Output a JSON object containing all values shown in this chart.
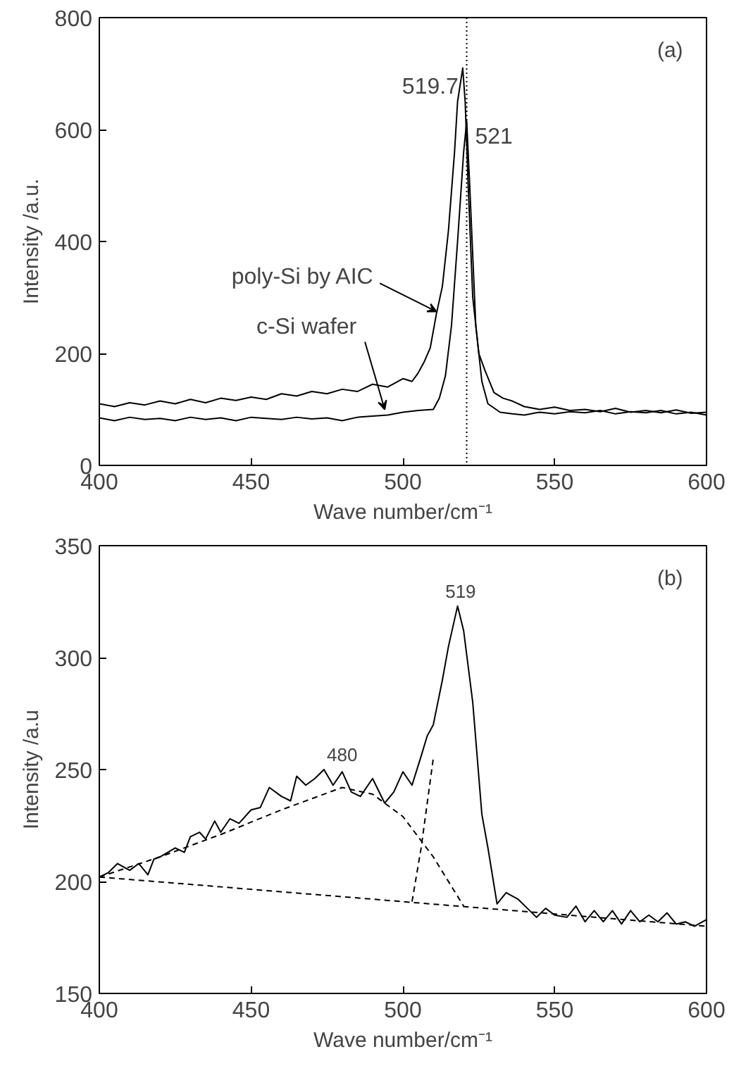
{
  "chart_data": [
    {
      "type": "line",
      "xlabel": "Wave number/cm⁻¹",
      "ylabel": "Intensity /a.u.",
      "xlim": [
        400,
        600
      ],
      "ylim": [
        0,
        800
      ],
      "xticks": [
        400,
        450,
        500,
        550,
        600
      ],
      "yticks": [
        0,
        200,
        400,
        600,
        800
      ],
      "series": [
        {
          "color": "#000000",
          "x": [
            400,
            405,
            410,
            415,
            420,
            425,
            430,
            435,
            440,
            445,
            450,
            455,
            460,
            465,
            470,
            475,
            480,
            485,
            490,
            495,
            500,
            503,
            505,
            507,
            509,
            511,
            513,
            515,
            517,
            518,
            519.7,
            520.5,
            521.5,
            523,
            525,
            527,
            530,
            533,
            536,
            540,
            545,
            550,
            555,
            560,
            565,
            570,
            575,
            580,
            585,
            590,
            595,
            600
          ],
          "values": [
            110,
            105,
            112,
            108,
            115,
            110,
            118,
            112,
            120,
            116,
            122,
            118,
            128,
            124,
            132,
            128,
            136,
            132,
            145,
            140,
            155,
            150,
            165,
            185,
            210,
            270,
            320,
            420,
            560,
            650,
            710,
            650,
            500,
            300,
            200,
            170,
            130,
            120,
            115,
            105,
            100,
            104,
            98,
            100,
            96,
            102,
            95,
            98,
            94,
            99,
            93,
            95
          ]
        },
        {
          "color": "#000000",
          "x": [
            400,
            405,
            410,
            415,
            420,
            425,
            430,
            435,
            440,
            445,
            450,
            455,
            460,
            465,
            470,
            475,
            480,
            485,
            490,
            495,
            500,
            505,
            510,
            512,
            514,
            516,
            518,
            520,
            521,
            522,
            524,
            526,
            528,
            532,
            536,
            540,
            545,
            550,
            555,
            560,
            565,
            570,
            575,
            580,
            585,
            590,
            595,
            600
          ],
          "values": [
            85,
            80,
            86,
            82,
            84,
            80,
            86,
            82,
            85,
            80,
            86,
            84,
            82,
            86,
            83,
            85,
            80,
            86,
            88,
            90,
            95,
            98,
            100,
            120,
            160,
            250,
            400,
            560,
            615,
            500,
            250,
            150,
            110,
            95,
            92,
            90,
            95,
            92,
            96,
            94,
            98,
            92,
            96,
            94,
            98,
            92,
            95,
            90
          ]
        }
      ],
      "ref_lines": [
        {
          "axis": "x",
          "value": 521,
          "color": "#000000",
          "line_style": "dotted"
        }
      ],
      "annotations": [
        {
          "text": "519.7",
          "x": 519.7,
          "y": 710
        },
        {
          "text": "521",
          "x": 521,
          "y": 615
        },
        {
          "text": "poly-Si by AIC",
          "x": 511,
          "y": 275
        },
        {
          "text": "c-Si wafer",
          "x": 494,
          "y": 100
        },
        "(a)"
      ]
    },
    {
      "type": "line",
      "xlabel": "Wave number/cm⁻¹",
      "ylabel": "Intensity /a.u",
      "xlim": [
        400,
        600
      ],
      "ylim": [
        150,
        350
      ],
      "xticks": [
        400,
        450,
        500,
        550,
        600
      ],
      "yticks": [
        150,
        200,
        250,
        300,
        350
      ],
      "series": [
        {
          "color": "#000000",
          "line_style": "solid",
          "x": [
            400,
            403,
            406,
            410,
            413,
            416,
            418,
            420,
            425,
            428,
            430,
            433,
            435,
            438,
            440,
            443,
            446,
            450,
            453,
            456,
            460,
            463,
            465,
            468,
            471,
            474,
            477,
            480,
            483,
            486,
            490,
            494,
            497,
            500,
            503,
            506,
            508,
            510,
            513,
            515,
            518,
            520,
            523,
            526,
            528,
            531,
            534,
            538,
            541,
            544,
            547,
            550,
            554,
            557,
            560,
            563,
            566,
            569,
            572,
            575,
            578,
            581,
            584,
            587,
            590,
            593,
            596,
            600
          ],
          "values": [
            202,
            204,
            208,
            205,
            208,
            203,
            210,
            211,
            215,
            213,
            220,
            222,
            219,
            227,
            222,
            228,
            226,
            232,
            233,
            242,
            238,
            236,
            247,
            243,
            246,
            250,
            243,
            249,
            240,
            238,
            246,
            235,
            240,
            249,
            243,
            256,
            265,
            270,
            290,
            305,
            323,
            312,
            280,
            230,
            215,
            190,
            195,
            192,
            188,
            184,
            188,
            185,
            184,
            189,
            182,
            187,
            182,
            187,
            181,
            187,
            182,
            185,
            182,
            186,
            181,
            182,
            180,
            183
          ]
        },
        {
          "color": "#000000",
          "line_style": "dashed",
          "x": [
            400,
            600
          ],
          "values": [
            202,
            180
          ]
        },
        {
          "color": "#000000",
          "line_style": "dashed",
          "x": [
            400,
            420,
            440,
            460,
            480,
            490,
            500,
            510,
            520
          ],
          "values": [
            202,
            211,
            221,
            232,
            242,
            239,
            229,
            211,
            189
          ]
        },
        {
          "color": "#000000",
          "line_style": "dashed",
          "x": [
            503,
            506,
            510
          ],
          "values": [
            191,
            215,
            255
          ]
        }
      ],
      "annotations": [
        {
          "text": "480",
          "x": 480,
          "y": 250
        },
        {
          "text": "519",
          "x": 519,
          "y": 323
        },
        "(b)"
      ]
    }
  ]
}
